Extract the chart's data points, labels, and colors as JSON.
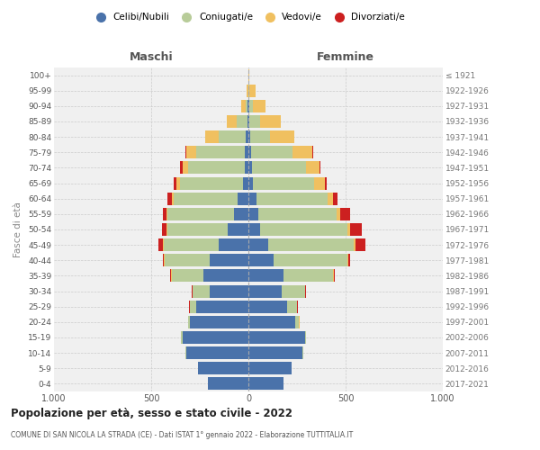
{
  "age_groups": [
    "0-4",
    "5-9",
    "10-14",
    "15-19",
    "20-24",
    "25-29",
    "30-34",
    "35-39",
    "40-44",
    "45-49",
    "50-54",
    "55-59",
    "60-64",
    "65-69",
    "70-74",
    "75-79",
    "80-84",
    "85-89",
    "90-94",
    "95-99",
    "100+"
  ],
  "birth_years": [
    "2017-2021",
    "2012-2016",
    "2007-2011",
    "2002-2006",
    "1997-2001",
    "1992-1996",
    "1987-1991",
    "1982-1986",
    "1977-1981",
    "1972-1976",
    "1967-1971",
    "1962-1966",
    "1957-1961",
    "1952-1956",
    "1947-1951",
    "1942-1946",
    "1937-1941",
    "1932-1936",
    "1927-1931",
    "1922-1926",
    "≤ 1921"
  ],
  "m_celibi": [
    210,
    260,
    320,
    340,
    300,
    270,
    200,
    230,
    200,
    155,
    105,
    75,
    55,
    30,
    20,
    18,
    12,
    5,
    3,
    0,
    0
  ],
  "m_coniugati": [
    0,
    0,
    2,
    5,
    10,
    30,
    85,
    165,
    230,
    280,
    310,
    340,
    330,
    320,
    290,
    250,
    140,
    55,
    12,
    2,
    0
  ],
  "m_vedovi": [
    0,
    0,
    0,
    2,
    2,
    2,
    2,
    2,
    3,
    5,
    8,
    5,
    10,
    20,
    30,
    50,
    70,
    50,
    20,
    5,
    2
  ],
  "m_divorziati": [
    0,
    0,
    0,
    0,
    0,
    2,
    5,
    5,
    6,
    22,
    22,
    22,
    22,
    12,
    12,
    5,
    0,
    0,
    0,
    0,
    0
  ],
  "f_nubili": [
    180,
    220,
    280,
    290,
    240,
    200,
    170,
    180,
    130,
    100,
    62,
    52,
    42,
    25,
    20,
    15,
    8,
    5,
    3,
    0,
    0
  ],
  "f_coniugate": [
    0,
    0,
    2,
    5,
    20,
    50,
    120,
    255,
    380,
    440,
    445,
    400,
    365,
    315,
    275,
    210,
    105,
    55,
    18,
    3,
    0
  ],
  "f_vedove": [
    0,
    0,
    0,
    0,
    2,
    2,
    2,
    5,
    5,
    10,
    15,
    20,
    30,
    52,
    72,
    105,
    125,
    105,
    65,
    32,
    5
  ],
  "f_divorziate": [
    0,
    0,
    0,
    0,
    0,
    2,
    2,
    5,
    10,
    52,
    62,
    52,
    22,
    12,
    5,
    5,
    0,
    0,
    0,
    0,
    0
  ],
  "color_cel": "#4a72aa",
  "color_con": "#b8cc99",
  "color_ved": "#f0c060",
  "color_div": "#cc2020",
  "xlim": 1000,
  "title": "Popolazione per età, sesso e stato civile - 2022",
  "subtitle": "COMUNE DI SAN NICOLA LA STRADA (CE) - Dati ISTAT 1° gennaio 2022 - Elaborazione TUTTITALIA.IT",
  "ylabel_left": "Fasce di età",
  "label_maschi": "Maschi",
  "label_femmine": "Femmine",
  "legend_labels": [
    "Celibi/Nubili",
    "Coniugati/e",
    "Vedovi/e",
    "Divorziati/e"
  ]
}
